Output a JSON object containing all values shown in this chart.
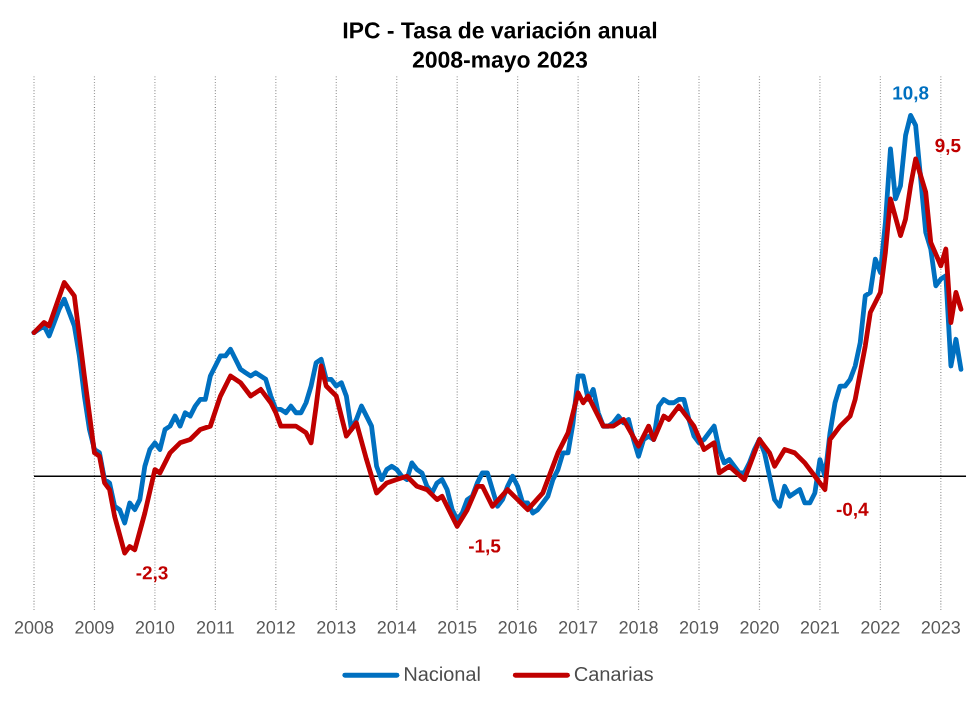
{
  "chart_data": {
    "type": "line",
    "title": "IPC - Tasa de variación anual",
    "subtitle": "2008-mayo 2023",
    "x": [
      "2008-01",
      "2008-02",
      "2008-03",
      "2008-04",
      "2008-05",
      "2008-06",
      "2008-07",
      "2008-08",
      "2008-09",
      "2008-10",
      "2008-11",
      "2008-12",
      "2009-01",
      "2009-02",
      "2009-03",
      "2009-04",
      "2009-05",
      "2009-06",
      "2009-07",
      "2009-08",
      "2009-09",
      "2009-10",
      "2009-11",
      "2009-12",
      "2010-01",
      "2010-02",
      "2010-03",
      "2010-04",
      "2010-05",
      "2010-06",
      "2010-07",
      "2010-08",
      "2010-09",
      "2010-10",
      "2010-11",
      "2010-12",
      "2011-01",
      "2011-02",
      "2011-03",
      "2011-04",
      "2011-05",
      "2011-06",
      "2011-07",
      "2011-08",
      "2011-09",
      "2011-10",
      "2011-11",
      "2011-12",
      "2012-01",
      "2012-02",
      "2012-03",
      "2012-04",
      "2012-05",
      "2012-06",
      "2012-07",
      "2012-08",
      "2012-09",
      "2012-10",
      "2012-11",
      "2012-12",
      "2013-01",
      "2013-02",
      "2013-03",
      "2013-04",
      "2013-05",
      "2013-06",
      "2013-07",
      "2013-08",
      "2013-09",
      "2013-10",
      "2013-11",
      "2013-12",
      "2014-01",
      "2014-02",
      "2014-03",
      "2014-04",
      "2014-05",
      "2014-06",
      "2014-07",
      "2014-08",
      "2014-09",
      "2014-10",
      "2014-11",
      "2014-12",
      "2015-01",
      "2015-02",
      "2015-03",
      "2015-04",
      "2015-05",
      "2015-06",
      "2015-07",
      "2015-08",
      "2015-09",
      "2015-10",
      "2015-11",
      "2015-12",
      "2016-01",
      "2016-02",
      "2016-03",
      "2016-04",
      "2016-05",
      "2016-06",
      "2016-07",
      "2016-08",
      "2016-09",
      "2016-10",
      "2016-11",
      "2016-12",
      "2017-01",
      "2017-02",
      "2017-03",
      "2017-04",
      "2017-05",
      "2017-06",
      "2017-07",
      "2017-08",
      "2017-09",
      "2017-10",
      "2017-11",
      "2017-12",
      "2018-01",
      "2018-02",
      "2018-03",
      "2018-04",
      "2018-05",
      "2018-06",
      "2018-07",
      "2018-08",
      "2018-09",
      "2018-10",
      "2018-11",
      "2018-12",
      "2019-01",
      "2019-02",
      "2019-03",
      "2019-04",
      "2019-05",
      "2019-06",
      "2019-07",
      "2019-08",
      "2019-09",
      "2019-10",
      "2019-11",
      "2019-12",
      "2020-01",
      "2020-02",
      "2020-03",
      "2020-04",
      "2020-05",
      "2020-06",
      "2020-07",
      "2020-08",
      "2020-09",
      "2020-10",
      "2020-11",
      "2020-12",
      "2021-01",
      "2021-02",
      "2021-03",
      "2021-04",
      "2021-05",
      "2021-06",
      "2021-07",
      "2021-08",
      "2021-09",
      "2021-10",
      "2021-11",
      "2021-12",
      "2022-01",
      "2022-02",
      "2022-03",
      "2022-04",
      "2022-05",
      "2022-06",
      "2022-07",
      "2022-08",
      "2022-09",
      "2022-10",
      "2022-11",
      "2022-12",
      "2023-01",
      "2023-02",
      "2023-03",
      "2023-04",
      "2023-05"
    ],
    "series": [
      {
        "name": "Nacional",
        "color": "#0070c0",
        "values": [
          4.3,
          4.4,
          4.5,
          4.2,
          4.6,
          5.0,
          5.3,
          4.9,
          4.5,
          3.6,
          2.4,
          1.4,
          0.8,
          0.7,
          -0.1,
          -0.2,
          -0.9,
          -1.0,
          -1.4,
          -0.8,
          -1.0,
          -0.7,
          0.3,
          0.8,
          1.0,
          0.8,
          1.4,
          1.5,
          1.8,
          1.5,
          1.9,
          1.8,
          2.1,
          2.3,
          2.3,
          3.0,
          3.3,
          3.6,
          3.6,
          3.8,
          3.5,
          3.2,
          3.1,
          3.0,
          3.1,
          3.0,
          2.9,
          2.4,
          2.0,
          2.0,
          1.9,
          2.1,
          1.9,
          1.9,
          2.2,
          2.7,
          3.4,
          3.5,
          2.9,
          2.9,
          2.7,
          2.8,
          2.4,
          1.4,
          1.7,
          2.1,
          1.8,
          1.5,
          0.3,
          -0.1,
          0.2,
          0.3,
          0.2,
          0.0,
          -0.1,
          0.4,
          0.2,
          0.1,
          -0.3,
          -0.5,
          -0.2,
          -0.1,
          -0.4,
          -1.0,
          -1.3,
          -1.1,
          -0.7,
          -0.6,
          -0.2,
          0.1,
          0.1,
          -0.4,
          -0.9,
          -0.7,
          -0.3,
          0.0,
          -0.3,
          -0.8,
          -0.8,
          -1.1,
          -1.0,
          -0.8,
          -0.6,
          -0.1,
          0.2,
          0.7,
          0.7,
          1.6,
          3.0,
          3.0,
          2.3,
          2.6,
          1.9,
          1.5,
          1.5,
          1.6,
          1.8,
          1.6,
          1.7,
          1.1,
          0.6,
          1.1,
          1.2,
          1.1,
          2.1,
          2.3,
          2.2,
          2.2,
          2.3,
          2.3,
          1.7,
          1.2,
          1.0,
          1.1,
          1.3,
          1.5,
          0.8,
          0.4,
          0.5,
          0.3,
          0.1,
          0.1,
          0.4,
          0.8,
          1.1,
          0.7,
          0.0,
          -0.7,
          -0.9,
          -0.3,
          -0.6,
          -0.5,
          -0.4,
          -0.8,
          -0.8,
          -0.5,
          0.5,
          0.0,
          1.3,
          2.2,
          2.7,
          2.7,
          2.9,
          3.3,
          4.0,
          5.4,
          5.5,
          6.5,
          6.1,
          7.6,
          9.8,
          8.3,
          8.7,
          10.2,
          10.8,
          10.5,
          8.9,
          7.3,
          6.8,
          5.7,
          5.9,
          6.0,
          3.3,
          4.1,
          3.2
        ],
        "value_labels": [
          null,
          null,
          null,
          null,
          null,
          null,
          null,
          null,
          null,
          null,
          null,
          null,
          null,
          null,
          null,
          null,
          null,
          null,
          null,
          null,
          null,
          null,
          null,
          null,
          null,
          null,
          null,
          null,
          null,
          null,
          null,
          null,
          null,
          null,
          null,
          null,
          null,
          null,
          null,
          null,
          null,
          null,
          null,
          null,
          null,
          null,
          null,
          null,
          null,
          null,
          null,
          null,
          null,
          null,
          null,
          null,
          null,
          null,
          null,
          null,
          null,
          null,
          null,
          null,
          null,
          null,
          null,
          null,
          null,
          null,
          null,
          null,
          null,
          null,
          null,
          null,
          null,
          null,
          null,
          null,
          null,
          null,
          null,
          null,
          null,
          null,
          null,
          null,
          null,
          null,
          null,
          null,
          null,
          null,
          null,
          null,
          null,
          null,
          null,
          null,
          null,
          null,
          null,
          null,
          null,
          null,
          null,
          null,
          null,
          null,
          null,
          null,
          null,
          null,
          null,
          null,
          null,
          null,
          null,
          null,
          null,
          null,
          null,
          null,
          null,
          null,
          null,
          null,
          null,
          null,
          null,
          null,
          null,
          null,
          null,
          null,
          null,
          null,
          null,
          null,
          null,
          null,
          null,
          null,
          null,
          null,
          null,
          null,
          null,
          null,
          null,
          null,
          null,
          null,
          null,
          null,
          null,
          null,
          null,
          null,
          null,
          null,
          null,
          null,
          null,
          null,
          null,
          null,
          null,
          null,
          null,
          null,
          null,
          null,
          "10,8",
          null,
          null,
          null,
          null,
          null,
          null,
          null,
          null,
          null,
          null
        ]
      },
      {
        "name": "Canarias",
        "color": "#c00000",
        "x": [
          "2008-01",
          "2008-03",
          "2008-04",
          "2008-07",
          "2008-08",
          "2008-09",
          "2008-11",
          "2009-01",
          "2009-02",
          "2009-03",
          "2009-04",
          "2009-05",
          "2009-07",
          "2009-08",
          "2009-09",
          "2009-11",
          "2010-01",
          "2010-02",
          "2010-04",
          "2010-06",
          "2010-08",
          "2010-10",
          "2010-12",
          "2011-02",
          "2011-04",
          "2011-06",
          "2011-08",
          "2011-10",
          "2011-12",
          "2012-01",
          "2012-02",
          "2012-05",
          "2012-07",
          "2012-08",
          "2012-09",
          "2012-10",
          "2012-11",
          "2013-01",
          "2013-03",
          "2013-05",
          "2013-07",
          "2013-09",
          "2013-11",
          "2014-01",
          "2014-03",
          "2014-05",
          "2014-07",
          "2014-09",
          "2014-10",
          "2015-01",
          "2015-03",
          "2015-05",
          "2015-06",
          "2015-08",
          "2015-11",
          "2016-01",
          "2016-03",
          "2016-06",
          "2016-09",
          "2016-11",
          "2017-01",
          "2017-02",
          "2017-03",
          "2017-06",
          "2017-08",
          "2017-10",
          "2018-01",
          "2018-03",
          "2018-04",
          "2018-06",
          "2018-07",
          "2018-09",
          "2018-12",
          "2019-02",
          "2019-04",
          "2019-05",
          "2019-07",
          "2019-10",
          "2020-01",
          "2020-03",
          "2020-04",
          "2020-06",
          "2020-08",
          "2020-10",
          "2020-12",
          "2021-02",
          "2021-03",
          "2021-05",
          "2021-07",
          "2021-08",
          "2021-10",
          "2021-11",
          "2022-01",
          "2022-02",
          "2022-03",
          "2022-05",
          "2022-06",
          "2022-07",
          "2022-08",
          "2022-10",
          "2022-11",
          "2023-01",
          "2023-02",
          "2023-03",
          "2023-04",
          "2023-05"
        ],
        "values": [
          4.3,
          4.6,
          4.5,
          5.8,
          5.6,
          5.4,
          3.0,
          0.7,
          0.6,
          -0.2,
          -0.4,
          -1.2,
          -2.3,
          -2.1,
          -2.2,
          -1.1,
          0.2,
          0.1,
          0.7,
          1.0,
          1.1,
          1.4,
          1.5,
          2.4,
          3.0,
          2.8,
          2.4,
          2.6,
          2.2,
          1.9,
          1.5,
          1.5,
          1.3,
          1.0,
          2.1,
          3.3,
          2.7,
          2.4,
          1.2,
          1.6,
          0.5,
          -0.5,
          -0.2,
          -0.1,
          0.0,
          -0.3,
          -0.4,
          -0.7,
          -0.6,
          -1.5,
          -1.0,
          -0.3,
          -0.3,
          -0.9,
          -0.4,
          -0.7,
          -1.0,
          -0.5,
          0.7,
          1.3,
          2.5,
          2.2,
          2.4,
          1.5,
          1.5,
          1.7,
          0.9,
          1.5,
          1.1,
          1.8,
          1.7,
          2.1,
          1.5,
          0.8,
          1.0,
          0.1,
          0.3,
          -0.1,
          1.1,
          0.7,
          0.3,
          0.8,
          0.7,
          0.4,
          0.0,
          -0.4,
          1.1,
          1.5,
          1.8,
          2.3,
          3.9,
          4.9,
          5.5,
          6.7,
          8.3,
          7.2,
          7.7,
          8.7,
          9.5,
          8.5,
          7.0,
          6.3,
          6.8,
          4.6,
          5.5,
          5.0
        ],
        "value_labels": [
          null,
          null,
          null,
          null,
          null,
          null,
          null,
          null,
          null,
          null,
          null,
          null,
          "-2,3",
          null,
          null,
          null,
          null,
          null,
          null,
          null,
          null,
          null,
          null,
          null,
          null,
          null,
          null,
          null,
          null,
          null,
          null,
          null,
          null,
          null,
          null,
          null,
          null,
          null,
          null,
          null,
          null,
          null,
          null,
          null,
          null,
          null,
          null,
          null,
          null,
          "-1,5",
          null,
          null,
          null,
          null,
          null,
          null,
          null,
          null,
          null,
          null,
          null,
          null,
          null,
          null,
          null,
          null,
          null,
          null,
          null,
          null,
          null,
          null,
          null,
          null,
          null,
          null,
          null,
          null,
          null,
          null,
          null,
          null,
          null,
          null,
          null,
          "-0,4",
          null,
          null,
          null,
          null,
          null,
          null,
          null,
          null,
          null,
          null,
          null,
          null,
          "9,5",
          null,
          null,
          null,
          null,
          null,
          null,
          null
        ]
      }
    ],
    "xlim": [
      "2008-01",
      "2023-06"
    ],
    "xticks": [
      "2008",
      "2009",
      "2010",
      "2011",
      "2012",
      "2013",
      "2014",
      "2015",
      "2016",
      "2017",
      "2018",
      "2019",
      "2020",
      "2021",
      "2022",
      "2023"
    ],
    "ref_lines": [
      {
        "axis": "y",
        "value": 0,
        "color": "#000000"
      }
    ],
    "grid": "x",
    "legend": "bottom",
    "marker": "none",
    "line_style": "solid"
  }
}
